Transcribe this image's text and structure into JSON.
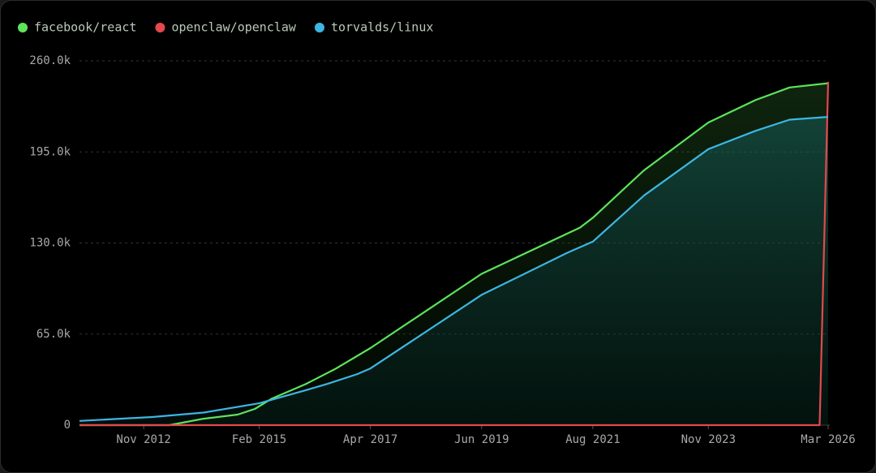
{
  "chart_data": {
    "type": "line",
    "xlim": [
      "2011-08",
      "2026-03"
    ],
    "xticks": [
      {
        "value": "2012-11",
        "label": "Nov 2012"
      },
      {
        "value": "2015-02",
        "label": "Feb 2015"
      },
      {
        "value": "2017-04",
        "label": "Apr 2017"
      },
      {
        "value": "2019-06",
        "label": "Jun 2019"
      },
      {
        "value": "2021-08",
        "label": "Aug 2021"
      },
      {
        "value": "2023-11",
        "label": "Nov 2023"
      },
      {
        "value": "2026-03",
        "label": "Mar 2026"
      }
    ],
    "ylim": [
      0,
      260000
    ],
    "yticks": [
      0,
      {
        "value": 65000,
        "label": "65.0k"
      },
      {
        "value": 130000,
        "label": "130.0k"
      },
      {
        "value": 195000,
        "label": "195.0k"
      },
      {
        "value": 260000,
        "label": "260.0k"
      }
    ],
    "grid": true,
    "series": [
      {
        "name": "facebook/react",
        "color": "#5ee35a",
        "fill": true,
        "x": [
          "2011-08",
          "2013-05",
          "2014-01",
          "2014-09",
          "2015-01",
          "2015-05",
          "2016-01",
          "2016-08",
          "2017-04",
          "2019-06",
          "2021-05",
          "2021-08",
          "2022-08",
          "2023-11",
          "2024-10",
          "2025-06",
          "2026-03"
        ],
        "values": [
          0,
          0,
          4600,
          7500,
          11600,
          19000,
          29500,
          40500,
          55000,
          108000,
          141000,
          148000,
          182000,
          216000,
          232000,
          241000,
          244000
        ]
      },
      {
        "name": "openclaw/openclaw",
        "color": "#e5484d",
        "fill": false,
        "x": [
          "2011-08",
          "2026-01",
          "2026-03"
        ],
        "values": [
          0,
          0,
          245000
        ]
      },
      {
        "name": "torvalds/linux",
        "color": "#3db6e3",
        "fill": true,
        "x": [
          "2011-08",
          "2013-01",
          "2014-01",
          "2015-02",
          "2016-01",
          "2016-06",
          "2017-01",
          "2017-04",
          "2019-06",
          "2021-02",
          "2021-08",
          "2022-08",
          "2023-11",
          "2024-10",
          "2025-06",
          "2026-03"
        ],
        "values": [
          3000,
          5800,
          9000,
          15600,
          25000,
          29500,
          36500,
          40500,
          93000,
          123000,
          131000,
          164000,
          197000,
          210000,
          218000,
          220000
        ]
      }
    ]
  }
}
